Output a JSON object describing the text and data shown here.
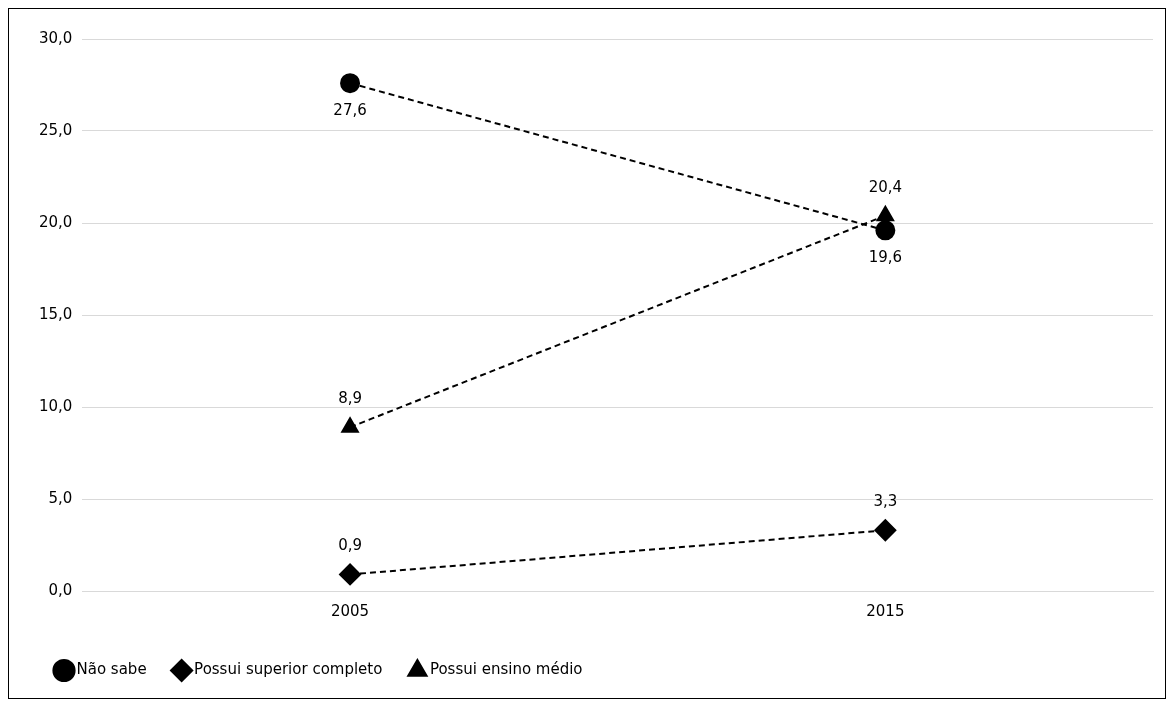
{
  "chart_data": {
    "type": "line",
    "categories": [
      "2005",
      "2015"
    ],
    "series": [
      {
        "name": "Não sabe",
        "color": "#000000",
        "values": [
          27.6,
          19.6
        ],
        "value_labels": [
          "27,6",
          "19,6"
        ],
        "marker": "circle",
        "line_style": "dashed"
      },
      {
        "name": "Possui superior completo",
        "color": "#000000",
        "values": [
          0.9,
          3.3
        ],
        "value_labels": [
          "0,9",
          "3,3"
        ],
        "marker": "diamond",
        "line_style": "dashed"
      },
      {
        "name": "Possui ensino médio",
        "color": "#000000",
        "values": [
          8.9,
          20.4
        ],
        "value_labels": [
          "8,9",
          "20,4"
        ],
        "marker": "triangle",
        "line_style": "dashed"
      }
    ],
    "ylim": [
      0,
      30
    ],
    "yticks": [
      {
        "value": 0,
        "label": "0,0"
      },
      {
        "value": 5,
        "label": "5,0"
      },
      {
        "value": 10,
        "label": "10,0"
      },
      {
        "value": 15,
        "label": "15,0"
      },
      {
        "value": 20,
        "label": "20,0"
      },
      {
        "value": 25,
        "label": "25,0"
      },
      {
        "value": 30,
        "label": "30,0"
      }
    ],
    "grid": "y",
    "legend": "bottom"
  }
}
